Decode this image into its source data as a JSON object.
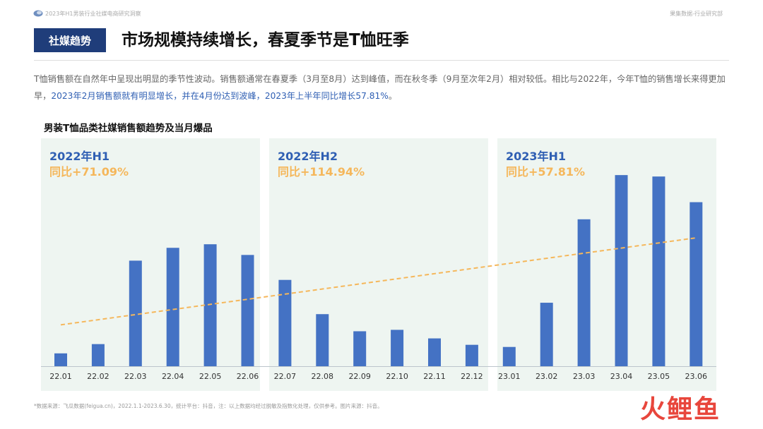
{
  "header": {
    "report_title": "2023年H1男装行业社媒电商研究洞察",
    "org_name": "果集数据-行业研究部"
  },
  "section_tag": "社媒趋势",
  "headline": "市场规模持续增长，春夏季节是T恤旺季",
  "description": {
    "part1": "T恤销售额在自然年中呈现出明显的季节性波动。销售额通常在春夏季（3月至8月）达到峰值，而在秋冬季（9月至次年2月）相对较低。相比与2022年，今年T恤的销售增长来得更加早，",
    "highlight": "2023年2月销售额就有明显增长，并在4月份达到波峰，2023年上半年同比增长57.81%",
    "part2": "。"
  },
  "chart_title": "男装T恤品类社媒销售额趋势及当月爆品",
  "panels": [
    {
      "period": "2022年H1",
      "yoy": "同比+71.09%"
    },
    {
      "period": "2022年H2",
      "yoy": "同比+114.94%"
    },
    {
      "period": "2023年H1",
      "yoy": "同比+57.81%"
    }
  ],
  "colors": {
    "bar": "#4472c4",
    "trend": "#f5b75b",
    "panel_bg": "#eef5f1",
    "period_text": "#2f5fb3",
    "yoy_text": "#f5b75b",
    "tag_bg": "#1f3d7a"
  },
  "chart_data": {
    "type": "bar",
    "categories": [
      "22.01",
      "22.02",
      "22.03",
      "22.04",
      "22.05",
      "22.06",
      "22.07",
      "22.08",
      "22.09",
      "22.10",
      "22.11",
      "22.12",
      "23.01",
      "23.02",
      "23.03",
      "23.04",
      "23.05",
      "23.06"
    ],
    "values": [
      18,
      31,
      148,
      166,
      171,
      156,
      121,
      73,
      49,
      51,
      39,
      30,
      27,
      89,
      206,
      268,
      266,
      230
    ],
    "ylim": [
      0,
      280
    ],
    "trendline": {
      "style": "dashed",
      "start": 58,
      "end": 180
    },
    "grid": false,
    "title": "男装T恤品类社媒销售额趋势及当月爆品"
  },
  "footnote": "*数据来源：飞瓜数据(feigua.cn)，2022.1.1-2023.6.30，统计平台：抖音，注：以上数据均经过脱敏及指数化处理，仅供参考。图片来源：抖音。",
  "watermark": "火鲤鱼"
}
